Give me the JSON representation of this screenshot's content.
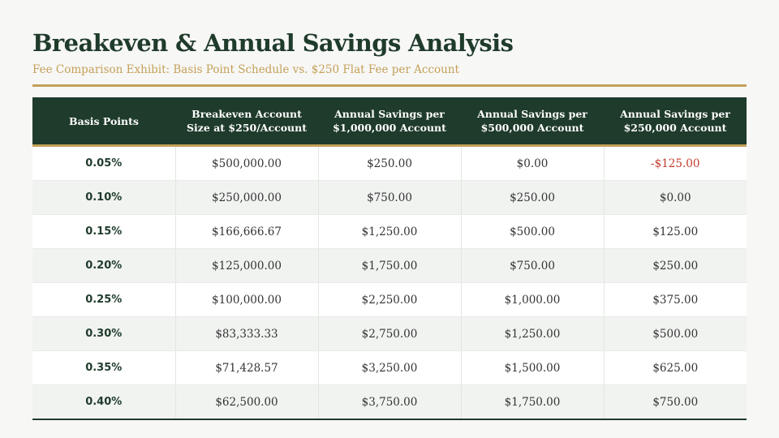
{
  "header": {
    "title": "Breakeven & Annual Savings Analysis",
    "subtitle": "Fee Comparison Exhibit: Basis Point Schedule vs. $250 Flat Fee per Account"
  },
  "table": {
    "columns": [
      "Basis Points",
      "Breakeven Account Size at $250/Account",
      "Annual Savings per $1,000,000 Account",
      "Annual Savings per $500,000 Account",
      "Annual Savings per $250,000 Account"
    ],
    "rows": [
      [
        "0.05%",
        "$500,000.00",
        "$250.00",
        "$0.00",
        "-$125.00"
      ],
      [
        "0.10%",
        "$250,000.00",
        "$750.00",
        "$250.00",
        "$0.00"
      ],
      [
        "0.15%",
        "$166,666.67",
        "$1,250.00",
        "$500.00",
        "$125.00"
      ],
      [
        "0.20%",
        "$125,000.00",
        "$1,750.00",
        "$750.00",
        "$250.00"
      ],
      [
        "0.25%",
        "$100,000.00",
        "$2,250.00",
        "$1,000.00",
        "$375.00"
      ],
      [
        "0.30%",
        "$83,333.33",
        "$2,750.00",
        "$1,250.00",
        "$500.00"
      ],
      [
        "0.35%",
        "$71,428.57",
        "$3,250.00",
        "$1,500.00",
        "$625.00"
      ],
      [
        "0.40%",
        "$62,500.00",
        "$3,750.00",
        "$1,750.00",
        "$750.00"
      ]
    ]
  },
  "colors": {
    "primary": "#1f3b2b",
    "accent": "#c4a057",
    "negative": "#c0392b"
  }
}
